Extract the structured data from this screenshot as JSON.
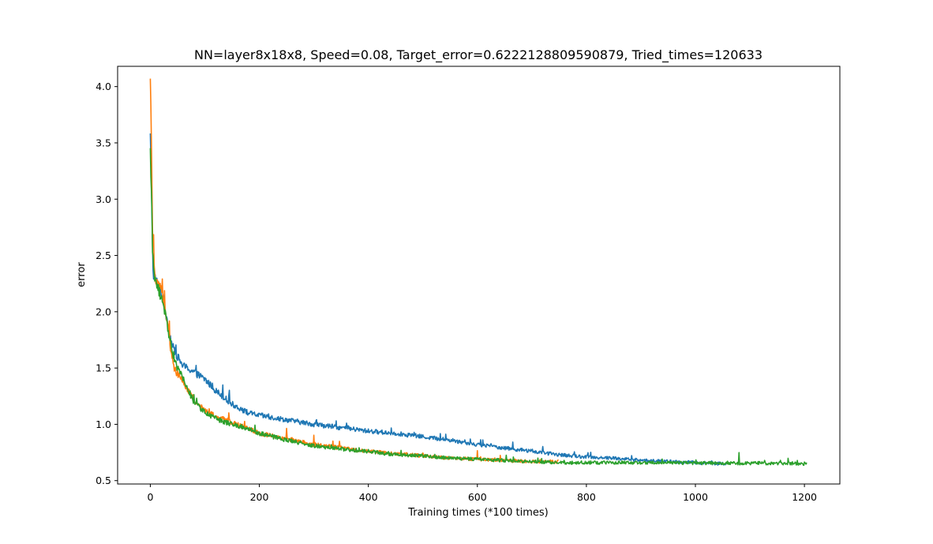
{
  "chart_data": {
    "type": "line",
    "title": "NN=layer8x18x8, Speed=0.08, Target_error=0.6222128809590879, Tried_times=120633",
    "xlabel": "Training times (*100 times)",
    "ylabel": "error",
    "xlim": [
      -60,
      1265
    ],
    "ylim": [
      0.47,
      4.18
    ],
    "xticks": [
      0,
      200,
      400,
      600,
      800,
      1000,
      1200
    ],
    "xtick_labels": [
      "0",
      "200",
      "400",
      "600",
      "800",
      "1000",
      "1200"
    ],
    "yticks": [
      0.5,
      1.0,
      1.5,
      2.0,
      2.5,
      3.0,
      3.5,
      4.0
    ],
    "ytick_labels": [
      "0.5",
      "1.0",
      "1.5",
      "2.0",
      "2.5",
      "3.0",
      "3.5",
      "4.0"
    ],
    "grid": false,
    "legend": "none",
    "series": [
      {
        "color": "#1f77b4",
        "length": 1057,
        "points": [
          [
            0,
            3.55
          ],
          [
            3,
            2.9
          ],
          [
            5,
            2.35
          ],
          [
            10,
            2.28
          ],
          [
            20,
            2.18
          ],
          [
            30,
            1.95
          ],
          [
            40,
            1.7
          ],
          [
            50,
            1.6
          ],
          [
            60,
            1.52
          ],
          [
            75,
            1.48
          ],
          [
            100,
            1.4
          ],
          [
            120,
            1.3
          ],
          [
            150,
            1.18
          ],
          [
            180,
            1.1
          ],
          [
            200,
            1.08
          ],
          [
            250,
            1.04
          ],
          [
            300,
            1.0
          ],
          [
            350,
            0.97
          ],
          [
            400,
            0.94
          ],
          [
            450,
            0.92
          ],
          [
            500,
            0.89
          ],
          [
            550,
            0.86
          ],
          [
            600,
            0.82
          ],
          [
            650,
            0.79
          ],
          [
            700,
            0.76
          ],
          [
            750,
            0.73
          ],
          [
            800,
            0.71
          ],
          [
            850,
            0.7
          ],
          [
            900,
            0.68
          ],
          [
            950,
            0.67
          ],
          [
            1000,
            0.66
          ],
          [
            1056,
            0.65
          ]
        ],
        "noise": 0.015,
        "spikes": [
          [
            133,
            0.12
          ],
          [
            145,
            0.08
          ],
          [
            305,
            0.06
          ],
          [
            360,
            0.05
          ],
          [
            610,
            0.05
          ],
          [
            665,
            0.05
          ]
        ]
      },
      {
        "color": "#ff7f0e",
        "length": 750,
        "points": [
          [
            0,
            4.02
          ],
          [
            2,
            3.5
          ],
          [
            4,
            2.7
          ],
          [
            6,
            2.4
          ],
          [
            10,
            2.3
          ],
          [
            20,
            2.2
          ],
          [
            30,
            1.95
          ],
          [
            38,
            1.65
          ],
          [
            45,
            1.48
          ],
          [
            55,
            1.42
          ],
          [
            70,
            1.3
          ],
          [
            80,
            1.22
          ],
          [
            100,
            1.12
          ],
          [
            125,
            1.06
          ],
          [
            150,
            1.02
          ],
          [
            175,
            0.97
          ],
          [
            200,
            0.92
          ],
          [
            250,
            0.87
          ],
          [
            300,
            0.82
          ],
          [
            350,
            0.79
          ],
          [
            400,
            0.76
          ],
          [
            450,
            0.74
          ],
          [
            500,
            0.72
          ],
          [
            550,
            0.7
          ],
          [
            600,
            0.69
          ],
          [
            650,
            0.68
          ],
          [
            700,
            0.67
          ],
          [
            749,
            0.67
          ]
        ],
        "noise": 0.015,
        "spikes": [
          [
            6,
            0.25
          ],
          [
            35,
            0.15
          ],
          [
            250,
            0.1
          ],
          [
            300,
            0.08
          ],
          [
            600,
            0.09
          ]
        ]
      },
      {
        "color": "#2ca02c",
        "length": 1205,
        "points": [
          [
            0,
            3.4
          ],
          [
            2,
            3.1
          ],
          [
            4,
            2.55
          ],
          [
            7,
            2.3
          ],
          [
            15,
            2.2
          ],
          [
            25,
            2.05
          ],
          [
            35,
            1.78
          ],
          [
            45,
            1.55
          ],
          [
            55,
            1.45
          ],
          [
            70,
            1.3
          ],
          [
            80,
            1.2
          ],
          [
            100,
            1.1
          ],
          [
            125,
            1.04
          ],
          [
            150,
            1.0
          ],
          [
            175,
            0.97
          ],
          [
            200,
            0.92
          ],
          [
            250,
            0.86
          ],
          [
            300,
            0.81
          ],
          [
            350,
            0.78
          ],
          [
            400,
            0.76
          ],
          [
            450,
            0.73
          ],
          [
            500,
            0.72
          ],
          [
            550,
            0.7
          ],
          [
            600,
            0.69
          ],
          [
            650,
            0.68
          ],
          [
            700,
            0.67
          ],
          [
            750,
            0.66
          ],
          [
            800,
            0.66
          ],
          [
            850,
            0.66
          ],
          [
            900,
            0.66
          ],
          [
            950,
            0.66
          ],
          [
            1000,
            0.655
          ],
          [
            1050,
            0.655
          ],
          [
            1100,
            0.655
          ],
          [
            1150,
            0.655
          ],
          [
            1204,
            0.65
          ]
        ],
        "noise": 0.015,
        "spikes": [
          [
            3,
            0.1
          ],
          [
            1080,
            0.08
          ],
          [
            1170,
            0.05
          ]
        ]
      }
    ]
  }
}
